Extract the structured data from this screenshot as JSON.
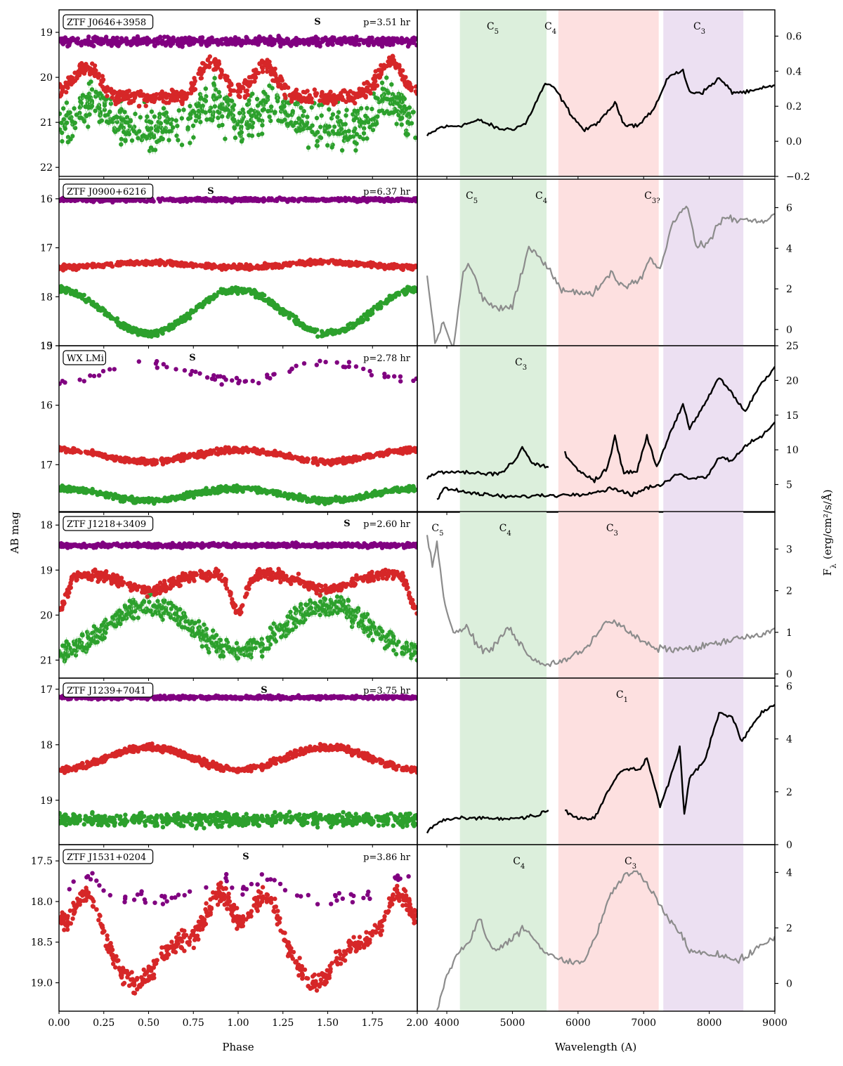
{
  "figure": {
    "left_ylabel": "AB mag",
    "right_ylabel_main": "F",
    "right_ylabel_sub": "λ",
    "right_ylabel_units": "(erg/cm²/s/Å)",
    "phase_xlabel": "Phase",
    "wave_xlabel": "Wavelength (A)",
    "phase_ticks": [
      "0.00",
      "0.25",
      "0.50",
      "0.75",
      "1.00",
      "1.25",
      "1.50",
      "1.75",
      "2.00"
    ],
    "wave_ticks": [
      "4000",
      "5000",
      "6000",
      "7000",
      "8000",
      "9000"
    ],
    "colors": {
      "purple": "#800080",
      "red": "#d62728",
      "green": "#2ca02c",
      "black": "#000000",
      "gray": "#8c8c8c",
      "band_green": "#dcefdc",
      "band_red": "#fde0e0",
      "band_purple": "#ece0f2"
    }
  },
  "chart_data": [
    {
      "type": "scatter",
      "name": "ZTF J0646+3958",
      "period": "p=3.51 hr",
      "s_marker": "S",
      "ylim": [
        22.2,
        18.5
      ],
      "mag_ticks": [
        "19",
        "20",
        "21",
        "22"
      ],
      "mag_tick_values": [
        19,
        20,
        21,
        22
      ],
      "lightcurve": {
        "purple": {
          "base": 19.2,
          "amp": 0.0,
          "scatter": 0.08
        },
        "red": {
          "base": 20.45,
          "humps": [
            [
              0.15,
              -0.7
            ],
            [
              0.85,
              -0.8
            ]
          ],
          "scatter": 0.15
        },
        "green": {
          "base": 21.1,
          "humps": [
            [
              0.2,
              -0.6
            ],
            [
              0.85,
              -0.6
            ]
          ],
          "scatter": 0.4
        }
      },
      "spectrum": {
        "style": "black",
        "flux_lim": [
          -0.2,
          0.75
        ],
        "flux_ticks": [
          "−0.2",
          "0.0",
          "0.2",
          "0.4",
          "0.6"
        ],
        "flux_tick_values": [
          -0.2,
          0.0,
          0.2,
          0.4,
          0.6
        ],
        "points": [
          [
            3700,
            0.03
          ],
          [
            3900,
            0.08
          ],
          [
            4200,
            0.09
          ],
          [
            4500,
            0.12
          ],
          [
            4800,
            0.07
          ],
          [
            5000,
            0.07
          ],
          [
            5200,
            0.1
          ],
          [
            5500,
            0.33
          ],
          [
            5650,
            0.3
          ],
          [
            5900,
            0.15
          ],
          [
            6100,
            0.06
          ],
          [
            6350,
            0.12
          ],
          [
            6562,
            0.22
          ],
          [
            6700,
            0.1
          ],
          [
            6900,
            0.09
          ],
          [
            7150,
            0.18
          ],
          [
            7400,
            0.38
          ],
          [
            7600,
            0.4
          ],
          [
            7700,
            0.28
          ],
          [
            7900,
            0.28
          ],
          [
            8150,
            0.36
          ],
          [
            8350,
            0.28
          ],
          [
            8600,
            0.28
          ],
          [
            9000,
            0.32
          ]
        ],
        "band_labels": [
          [
            "C",
            "5",
            4700
          ],
          [
            "C",
            "4",
            5580
          ],
          [
            "C",
            "3",
            7850
          ]
        ]
      }
    },
    {
      "type": "scatter",
      "name": "ZTF J0900+6216",
      "period": "p=6.37 hr",
      "s_marker": "S",
      "ylim": [
        19.0,
        15.6
      ],
      "mag_ticks": [
        "16",
        "17",
        "18",
        "19"
      ],
      "mag_tick_values": [
        16,
        17,
        18,
        19
      ],
      "lightcurve": {
        "purple": {
          "base": 16.02,
          "amp": 0.0,
          "scatter": 0.03
        },
        "red": {
          "base": 17.35,
          "amp": 0.05,
          "scatter": 0.04
        },
        "green": {
          "base": 18.3,
          "amp": -0.45,
          "scatter": 0.06
        }
      },
      "spectrum": {
        "style": "gray",
        "flux_lim": [
          -0.8,
          7.4
        ],
        "flux_ticks": [
          "0",
          "2",
          "4",
          "6"
        ],
        "flux_tick_values": [
          0,
          2,
          4,
          6
        ],
        "points": [
          [
            3700,
            2.7
          ],
          [
            3820,
            -0.6
          ],
          [
            3950,
            0.3
          ],
          [
            4100,
            -0.9
          ],
          [
            4250,
            2.8
          ],
          [
            4350,
            3.2
          ],
          [
            4550,
            1.5
          ],
          [
            4800,
            1.0
          ],
          [
            5000,
            1.1
          ],
          [
            5250,
            4.0
          ],
          [
            5450,
            3.5
          ],
          [
            5750,
            2.0
          ],
          [
            6000,
            1.8
          ],
          [
            6200,
            1.7
          ],
          [
            6500,
            2.8
          ],
          [
            6700,
            2.1
          ],
          [
            6950,
            2.5
          ],
          [
            7100,
            3.5
          ],
          [
            7250,
            3.0
          ],
          [
            7450,
            5.3
          ],
          [
            7650,
            6.2
          ],
          [
            7800,
            4.1
          ],
          [
            8000,
            4.3
          ],
          [
            8200,
            5.5
          ],
          [
            8500,
            5.4
          ],
          [
            8800,
            5.3
          ],
          [
            9000,
            5.7
          ]
        ],
        "band_labels": [
          [
            "C",
            "5",
            4380
          ],
          [
            "C",
            "4",
            5440
          ],
          [
            "C",
            "3?",
            7130
          ]
        ]
      }
    },
    {
      "type": "scatter",
      "name": "WX LMi",
      "period": "p=2.78 hr",
      "s_marker": "S",
      "ylim": [
        17.8,
        15.0
      ],
      "mag_ticks": [
        "15",
        "16",
        "17"
      ],
      "mag_tick_values": [
        15,
        16,
        17
      ],
      "lightcurve": {
        "purple": {
          "base": 15.45,
          "amp": 0.15,
          "scatter": 0.06,
          "sparse": true
        },
        "red": {
          "base": 16.85,
          "amp": -0.1,
          "scatter": 0.04
        },
        "green": {
          "base": 17.5,
          "amp": -0.1,
          "scatter": 0.04
        }
      },
      "spectrum": {
        "style": "black",
        "flux_lim": [
          1.0,
          25.0
        ],
        "flux_ticks": [
          "5",
          "10",
          "15",
          "20",
          "25"
        ],
        "flux_tick_values": [
          5,
          10,
          15,
          20,
          25
        ],
        "points": [
          [
            3700,
            6.0
          ],
          [
            3900,
            6.8
          ],
          [
            4200,
            6.8
          ],
          [
            4500,
            6.6
          ],
          [
            4800,
            6.6
          ],
          [
            5050,
            8.5
          ],
          [
            5150,
            10.5
          ],
          [
            5300,
            8.0
          ],
          [
            5550,
            7.5
          ]
        ],
        "points2": [
          [
            5800,
            9.5
          ],
          [
            6000,
            7.0
          ],
          [
            6250,
            5.5
          ],
          [
            6450,
            7.5
          ],
          [
            6562,
            12.0
          ],
          [
            6700,
            6.5
          ],
          [
            6900,
            7.0
          ],
          [
            7050,
            12.0
          ],
          [
            7200,
            7.5
          ],
          [
            7450,
            13.5
          ],
          [
            7600,
            16.5
          ],
          [
            7700,
            13.0
          ],
          [
            7900,
            16.0
          ],
          [
            8150,
            20.5
          ],
          [
            8350,
            18.0
          ],
          [
            8550,
            15.5
          ],
          [
            8750,
            19.0
          ],
          [
            9000,
            22.0
          ]
        ],
        "points3": [
          [
            3850,
            2.8
          ],
          [
            3950,
            4.5
          ],
          [
            4200,
            4.0
          ],
          [
            4600,
            3.5
          ],
          [
            5000,
            3.2
          ],
          [
            5400,
            3.4
          ],
          [
            5800,
            3.5
          ],
          [
            6200,
            3.8
          ],
          [
            6562,
            4.5
          ],
          [
            6800,
            3.5
          ],
          [
            7050,
            4.5
          ],
          [
            7300,
            5.0
          ],
          [
            7500,
            6.5
          ],
          [
            7700,
            6.0
          ],
          [
            7950,
            6.0
          ],
          [
            8150,
            9.0
          ],
          [
            8350,
            8.5
          ],
          [
            8600,
            11.0
          ],
          [
            8800,
            12.0
          ],
          [
            9000,
            14.0
          ]
        ],
        "band_labels": [
          [
            "C",
            "3",
            5130
          ]
        ]
      }
    },
    {
      "type": "scatter",
      "name": "ZTF J1218+3409",
      "period": "p=2.60 hr",
      "s_marker": "S",
      "ylim": [
        21.4,
        17.7
      ],
      "mag_ticks": [
        "18",
        "19",
        "20",
        "21"
      ],
      "mag_tick_values": [
        18,
        19,
        20,
        21
      ],
      "lightcurve": {
        "purple": {
          "base": 18.45,
          "amp": 0.0,
          "scatter": 0.04
        },
        "red": {
          "base": 19.1,
          "dip": [
            [
              0.0,
              0.8
            ],
            [
              0.5,
              0.35
            ]
          ],
          "scatter": 0.1
        },
        "green": {
          "base": 20.3,
          "amp": 0.5,
          "scatter": 0.2
        }
      },
      "spectrum": {
        "style": "gray",
        "flux_lim": [
          -0.1,
          3.9
        ],
        "flux_ticks": [
          "0",
          "1",
          "2",
          "3"
        ],
        "flux_tick_values": [
          0,
          1,
          2,
          3
        ],
        "points": [
          [
            3700,
            3.3
          ],
          [
            3780,
            2.6
          ],
          [
            3850,
            3.2
          ],
          [
            3950,
            1.8
          ],
          [
            4100,
            1.0
          ],
          [
            4300,
            1.1
          ],
          [
            4500,
            0.6
          ],
          [
            4700,
            0.6
          ],
          [
            4900,
            1.1
          ],
          [
            5050,
            0.9
          ],
          [
            5250,
            0.4
          ],
          [
            5500,
            0.2
          ],
          [
            5700,
            0.3
          ],
          [
            5900,
            0.4
          ],
          [
            6100,
            0.6
          ],
          [
            6300,
            1.0
          ],
          [
            6450,
            1.3
          ],
          [
            6700,
            1.1
          ],
          [
            6950,
            0.8
          ],
          [
            7200,
            0.6
          ],
          [
            7450,
            0.6
          ],
          [
            7750,
            0.6
          ],
          [
            8000,
            0.7
          ],
          [
            8300,
            0.8
          ],
          [
            8600,
            0.9
          ],
          [
            8800,
            0.9
          ],
          [
            9000,
            1.1
          ]
        ],
        "band_labels": [
          [
            "C",
            "5",
            3860
          ],
          [
            "C",
            "4",
            4890
          ],
          [
            "C",
            "3",
            6520
          ]
        ]
      }
    },
    {
      "type": "scatter",
      "name": "ZTF J1239+7041",
      "period": "p=3.75 hr",
      "s_marker": "S",
      "ylim": [
        19.8,
        16.8
      ],
      "mag_ticks": [
        "17",
        "18",
        "19"
      ],
      "mag_tick_values": [
        17,
        18,
        19
      ],
      "lightcurve": {
        "purple": {
          "base": 17.15,
          "amp": 0.0,
          "scatter": 0.025
        },
        "red": {
          "base": 18.25,
          "amp": 0.2,
          "scatter": 0.05
        },
        "green": {
          "base": 19.35,
          "amp": 0.0,
          "scatter": 0.1
        }
      },
      "spectrum": {
        "style": "black",
        "flux_lim": [
          0.0,
          6.3
        ],
        "flux_ticks": [
          "0",
          "2",
          "4",
          "6"
        ],
        "flux_tick_values": [
          0,
          2,
          4,
          6
        ],
        "points": [
          [
            3700,
            0.5
          ],
          [
            3900,
            0.9
          ],
          [
            4200,
            1.0
          ],
          [
            4500,
            1.0
          ],
          [
            4800,
            1.0
          ],
          [
            5100,
            1.0
          ],
          [
            5350,
            1.1
          ],
          [
            5550,
            1.3
          ]
        ],
        "points2": [
          [
            5800,
            1.3
          ],
          [
            6000,
            1.0
          ],
          [
            6250,
            1.0
          ],
          [
            6450,
            2.0
          ],
          [
            6650,
            2.8
          ],
          [
            6800,
            2.9
          ],
          [
            6950,
            2.8
          ],
          [
            7050,
            3.3
          ],
          [
            7150,
            2.4
          ],
          [
            7250,
            1.4
          ],
          [
            7400,
            2.5
          ],
          [
            7550,
            3.7
          ],
          [
            7620,
            1.2
          ],
          [
            7700,
            2.5
          ],
          [
            7950,
            3.3
          ],
          [
            8150,
            5.0
          ],
          [
            8350,
            4.8
          ],
          [
            8500,
            3.9
          ],
          [
            8650,
            4.5
          ],
          [
            8800,
            5.0
          ],
          [
            9000,
            5.3
          ]
        ],
        "band_labels": [
          [
            "C",
            "1",
            6670
          ]
        ]
      }
    },
    {
      "type": "scatter",
      "name": "ZTF J1531+0204",
      "period": "p=3.86 hr",
      "s_marker": "S",
      "ylim": [
        19.35,
        17.3
      ],
      "mag_ticks": [
        "17.5",
        "18.0",
        "18.5",
        "19.0"
      ],
      "mag_tick_values": [
        17.5,
        18.0,
        18.5,
        19.0
      ],
      "lightcurve": {
        "purple": {
          "base": 17.95,
          "humps": [
            [
              0.15,
              -0.25
            ],
            [
              0.9,
              -0.25
            ]
          ],
          "scatter": 0.06,
          "sparse": true
        },
        "red": {
          "base": 18.5,
          "humps": [
            [
              0.15,
              -0.6
            ],
            [
              0.9,
              -0.6
            ]
          ],
          "dips": [
            [
              0.43,
              0.5
            ]
          ],
          "scatter": 0.1
        }
      },
      "spectrum": {
        "style": "gray",
        "flux_lim": [
          -1.0,
          5.0
        ],
        "flux_ticks": [
          "0",
          "2",
          "4"
        ],
        "flux_tick_values": [
          0,
          2,
          4
        ],
        "points": [
          [
            3850,
            -1.0
          ],
          [
            4000,
            0.3
          ],
          [
            4200,
            1.2
          ],
          [
            4350,
            1.5
          ],
          [
            4500,
            2.4
          ],
          [
            4650,
            1.3
          ],
          [
            4800,
            1.2
          ],
          [
            5000,
            1.6
          ],
          [
            5150,
            2.0
          ],
          [
            5300,
            1.7
          ],
          [
            5500,
            1.1
          ],
          [
            5700,
            0.9
          ],
          [
            5900,
            0.7
          ],
          [
            6100,
            0.8
          ],
          [
            6300,
            1.9
          ],
          [
            6500,
            3.2
          ],
          [
            6700,
            3.9
          ],
          [
            6900,
            4.0
          ],
          [
            7100,
            3.4
          ],
          [
            7300,
            2.6
          ],
          [
            7500,
            2.0
          ],
          [
            7700,
            1.2
          ],
          [
            7950,
            1.1
          ],
          [
            8200,
            1.0
          ],
          [
            8450,
            0.8
          ],
          [
            8700,
            1.2
          ],
          [
            9000,
            1.7
          ]
        ],
        "band_labels": [
          [
            "C",
            "4",
            5100
          ],
          [
            "C",
            "3",
            6800
          ]
        ]
      }
    }
  ]
}
